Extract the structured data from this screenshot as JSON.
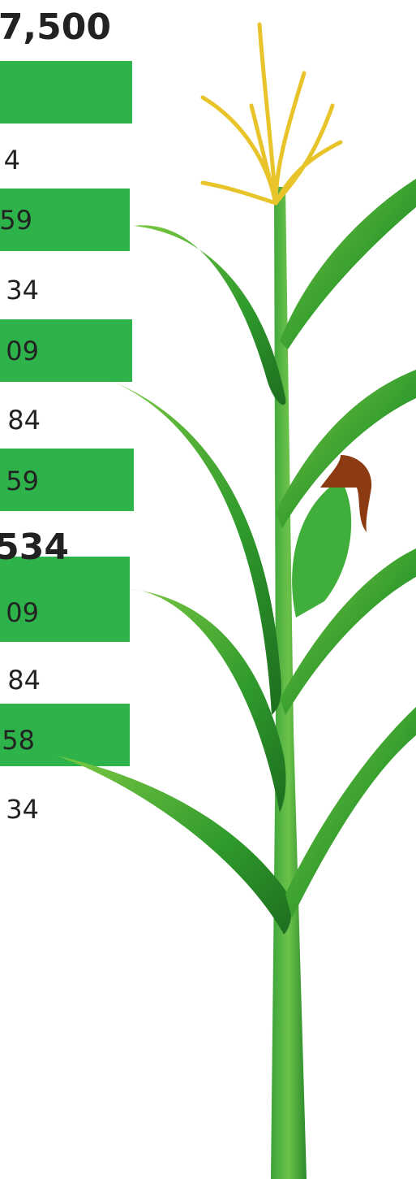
{
  "sections": [
    {
      "title": "7,500",
      "rows": [
        "4",
        "59",
        "34",
        "09",
        "84",
        "59"
      ]
    },
    {
      "title": "534",
      "rows": [
        "09",
        "84",
        "58",
        "34"
      ]
    }
  ]
}
